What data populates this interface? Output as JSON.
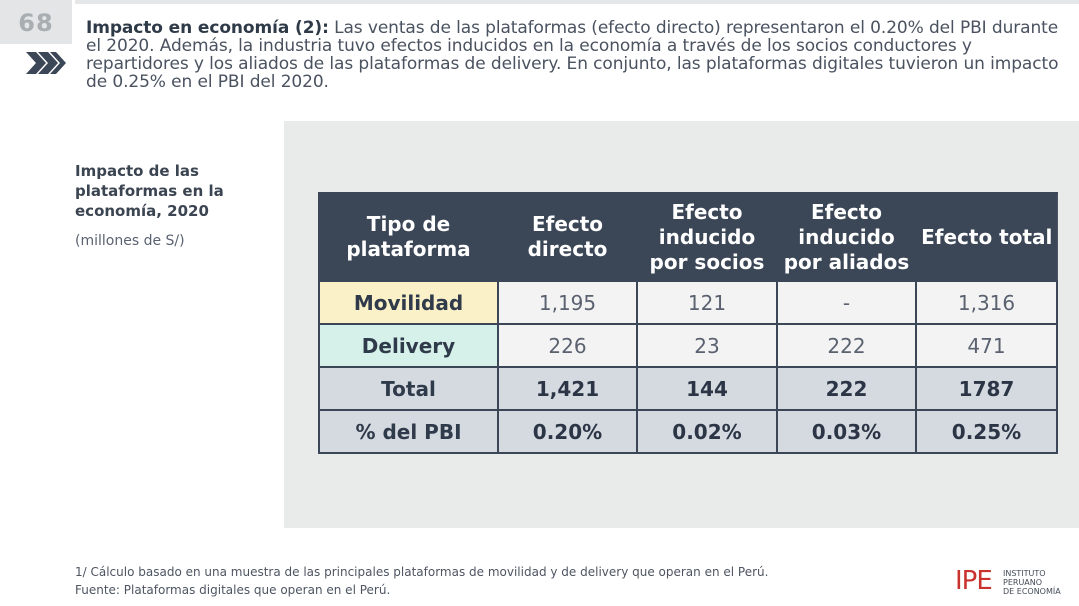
{
  "page": {
    "number": "68"
  },
  "intro": {
    "heading": "Impacto en economía (2):",
    "text": " Las ventas de las plataformas (efecto directo) representaron el 0.20% del PBI durante el 2020. Además, la industria tuvo efectos inducidos en la economía a través de los socios conductores y repartidores y los aliados de las plataformas de delivery. En conjunto, las plataformas digitales tuvieron un impacto de 0.25% en el PBI del 2020."
  },
  "side": {
    "title": "Impacto de las plataformas en la economía, 2020",
    "unit": "(millones de S/)"
  },
  "table": {
    "headers": [
      "Tipo de plataforma",
      "Efecto directo",
      "Efecto inducido por socios",
      "Efecto inducido por aliados",
      "Efecto total"
    ],
    "rows": [
      {
        "label": "Movilidad",
        "values": [
          "1,195",
          "121",
          "-",
          "1,316"
        ]
      },
      {
        "label": "Delivery",
        "values": [
          "226",
          "23",
          "222",
          "471"
        ]
      },
      {
        "label": "Total",
        "values": [
          "1,421",
          "144",
          "222",
          "1787"
        ]
      },
      {
        "label": "% del PBI",
        "values": [
          "0.20%",
          "0.02%",
          "0.03%",
          "0.25%"
        ]
      }
    ]
  },
  "footnotes": {
    "note": "1/ Cálculo basado en una muestra de las principales plataformas de movilidad y de delivery que operan en el Perú.",
    "source": "Fuente: Plataformas digitales que operan en el Perú."
  },
  "logo": {
    "mark": "IPE",
    "line1": "INSTITUTO",
    "line2": "PERUANO",
    "line3": "DE ECONOMÍA"
  },
  "colors": {
    "header_bg": "#3b4656",
    "movilidad_bg": "#fbf1c8",
    "delivery_bg": "#d6f1ea",
    "total_bg": "#d5d9e0",
    "panel_bg": "#e9eaea",
    "logo_red": "#c8332e"
  }
}
